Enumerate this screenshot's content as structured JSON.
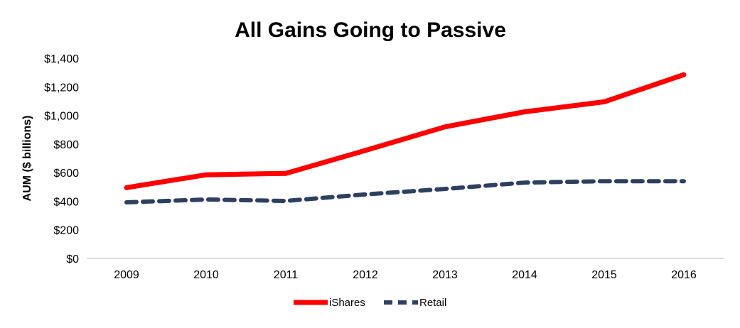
{
  "chart_data": {
    "type": "line",
    "title": "All Gains Going to Passive",
    "xlabel": "",
    "ylabel": "AUM ($ billions)",
    "categories": [
      "2009",
      "2010",
      "2011",
      "2012",
      "2013",
      "2014",
      "2015",
      "2016"
    ],
    "ylim": [
      0,
      1400
    ],
    "yticks": [
      "$0",
      "$200",
      "$400",
      "$600",
      "$800",
      "$1,000",
      "$1,200",
      "$1,400"
    ],
    "ytick_values": [
      0,
      200,
      400,
      600,
      800,
      1000,
      1200,
      1400
    ],
    "grid": false,
    "legend_position": "bottom",
    "series": [
      {
        "name": "iShares",
        "color": "#ff0000",
        "style": "solid",
        "values": [
          495,
          585,
          595,
          755,
          920,
          1025,
          1095,
          1285
        ]
      },
      {
        "name": "Retail",
        "color": "#2e4060",
        "style": "dashed",
        "values": [
          392,
          412,
          402,
          448,
          486,
          530,
          540,
          540
        ]
      }
    ]
  }
}
